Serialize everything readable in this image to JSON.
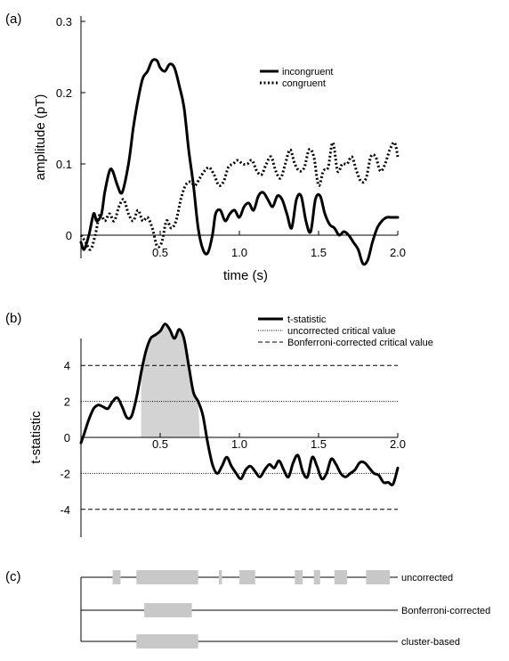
{
  "panels": {
    "a_label": "(a)",
    "b_label": "(b)",
    "c_label": "(c)"
  },
  "chart_data": [
    {
      "type": "line",
      "panel": "(a)",
      "xlabel": "time (s)",
      "ylabel": "amplitude (pT)",
      "xlim": [
        0,
        2.0
      ],
      "ylim": [
        -0.04,
        0.3
      ],
      "x_ticks": [
        "0.5",
        "1.0",
        "1.5",
        "2.0"
      ],
      "x_tick_values": [
        0.5,
        1.0,
        1.5,
        2.0
      ],
      "y_ticks": [
        "0",
        "0.1",
        "0.2",
        "0.3"
      ],
      "y_tick_values": [
        0,
        0.1,
        0.2,
        0.3
      ],
      "grid": false,
      "legend_position": "top-right",
      "series": [
        {
          "name": "incongruent",
          "style": "solid",
          "x": [
            0.0,
            0.02,
            0.05,
            0.08,
            0.1,
            0.13,
            0.15,
            0.18,
            0.2,
            0.23,
            0.26,
            0.3,
            0.33,
            0.36,
            0.39,
            0.42,
            0.45,
            0.48,
            0.5,
            0.53,
            0.56,
            0.59,
            0.62,
            0.65,
            0.68,
            0.71,
            0.74,
            0.77,
            0.8,
            0.83,
            0.85,
            0.88,
            0.91,
            0.94,
            0.97,
            1.0,
            1.03,
            1.06,
            1.09,
            1.12,
            1.15,
            1.18,
            1.21,
            1.24,
            1.27,
            1.3,
            1.33,
            1.36,
            1.39,
            1.42,
            1.45,
            1.48,
            1.51,
            1.54,
            1.57,
            1.6,
            1.63,
            1.66,
            1.69,
            1.72,
            1.75,
            1.78,
            1.81,
            1.84,
            1.87,
            1.9,
            1.93,
            1.96,
            2.0
          ],
          "y": [
            -0.01,
            -0.02,
            0.0,
            0.03,
            0.02,
            0.03,
            0.06,
            0.09,
            0.09,
            0.07,
            0.06,
            0.1,
            0.15,
            0.19,
            0.22,
            0.23,
            0.245,
            0.245,
            0.235,
            0.23,
            0.24,
            0.235,
            0.21,
            0.18,
            0.12,
            0.07,
            0.01,
            -0.02,
            -0.025,
            0.0,
            0.03,
            0.035,
            0.02,
            0.03,
            0.035,
            0.025,
            0.04,
            0.045,
            0.035,
            0.055,
            0.06,
            0.05,
            0.04,
            0.055,
            0.05,
            0.03,
            0.01,
            0.05,
            0.055,
            0.02,
            0.005,
            0.05,
            0.055,
            0.03,
            0.015,
            0.01,
            0.0,
            0.005,
            0.0,
            -0.01,
            -0.02,
            -0.04,
            -0.035,
            -0.01,
            0.01,
            0.02,
            0.025,
            0.025,
            0.025
          ]
        },
        {
          "name": "congruent",
          "style": "dotted",
          "x": [
            0.0,
            0.03,
            0.06,
            0.09,
            0.12,
            0.15,
            0.18,
            0.21,
            0.24,
            0.27,
            0.3,
            0.33,
            0.36,
            0.39,
            0.42,
            0.45,
            0.48,
            0.51,
            0.54,
            0.57,
            0.6,
            0.63,
            0.66,
            0.69,
            0.72,
            0.75,
            0.78,
            0.81,
            0.84,
            0.87,
            0.9,
            0.93,
            0.96,
            0.99,
            1.02,
            1.05,
            1.08,
            1.11,
            1.14,
            1.17,
            1.2,
            1.23,
            1.26,
            1.29,
            1.32,
            1.35,
            1.38,
            1.41,
            1.44,
            1.47,
            1.5,
            1.53,
            1.56,
            1.59,
            1.62,
            1.65,
            1.68,
            1.71,
            1.74,
            1.77,
            1.8,
            1.83,
            1.86,
            1.89,
            1.92,
            1.95,
            1.98,
            2.0
          ],
          "y": [
            0.0,
            -0.01,
            -0.02,
            0.0,
            0.03,
            0.02,
            0.03,
            0.02,
            0.04,
            0.05,
            0.03,
            0.02,
            0.035,
            0.02,
            0.025,
            0.01,
            -0.015,
            -0.01,
            0.02,
            0.01,
            0.02,
            0.05,
            0.07,
            0.075,
            0.07,
            0.08,
            0.09,
            0.095,
            0.085,
            0.07,
            0.075,
            0.095,
            0.1,
            0.105,
            0.1,
            0.1,
            0.105,
            0.09,
            0.085,
            0.1,
            0.11,
            0.09,
            0.08,
            0.1,
            0.12,
            0.1,
            0.09,
            0.095,
            0.12,
            0.11,
            0.07,
            0.09,
            0.095,
            0.13,
            0.09,
            0.1,
            0.1,
            0.11,
            0.09,
            0.075,
            0.08,
            0.11,
            0.11,
            0.09,
            0.1,
            0.12,
            0.13,
            0.11
          ]
        }
      ]
    },
    {
      "type": "line",
      "panel": "(b)",
      "xlabel": "",
      "ylabel": "t-statistic",
      "xlim": [
        0,
        2.0
      ],
      "ylim": [
        -5.6,
        5.6
      ],
      "x_ticks": [
        "0.5",
        "1.0",
        "1.5",
        "2.0"
      ],
      "x_tick_values": [
        0.5,
        1.0,
        1.5,
        2.0
      ],
      "y_ticks": [
        "-4",
        "-2",
        "0",
        "2",
        "4"
      ],
      "y_tick_values": [
        -4,
        -2,
        0,
        2,
        4
      ],
      "grid": false,
      "legend_position": "top-right",
      "shaded_region": {
        "x_start": 0.38,
        "x_end": 0.75,
        "color": "#d3d3d3"
      },
      "reference_lines": [
        {
          "name": "uncorrected critical value",
          "style": "dotted",
          "values": [
            2,
            -2
          ]
        },
        {
          "name": "Bonferroni-corrected critical value",
          "style": "dashed",
          "values": [
            4,
            -4
          ]
        }
      ],
      "series": [
        {
          "name": "t-statistic",
          "style": "solid",
          "x": [
            0.0,
            0.02,
            0.05,
            0.08,
            0.11,
            0.14,
            0.17,
            0.2,
            0.23,
            0.26,
            0.29,
            0.32,
            0.35,
            0.38,
            0.41,
            0.44,
            0.47,
            0.5,
            0.53,
            0.56,
            0.59,
            0.62,
            0.65,
            0.68,
            0.71,
            0.74,
            0.77,
            0.8,
            0.83,
            0.86,
            0.89,
            0.92,
            0.95,
            0.98,
            1.01,
            1.04,
            1.07,
            1.1,
            1.13,
            1.16,
            1.19,
            1.22,
            1.25,
            1.28,
            1.31,
            1.34,
            1.37,
            1.4,
            1.43,
            1.46,
            1.49,
            1.52,
            1.55,
            1.58,
            1.61,
            1.64,
            1.67,
            1.7,
            1.73,
            1.76,
            1.79,
            1.82,
            1.85,
            1.88,
            1.91,
            1.94,
            1.97,
            2.0
          ],
          "y": [
            -0.3,
            0.2,
            1.0,
            1.6,
            1.8,
            1.7,
            1.6,
            2.0,
            2.2,
            1.7,
            1.1,
            1.2,
            2.2,
            3.6,
            4.8,
            5.5,
            5.7,
            5.9,
            6.3,
            6.0,
            5.5,
            6.0,
            5.5,
            4.0,
            2.5,
            2.0,
            1.2,
            -0.3,
            -1.5,
            -2.0,
            -1.6,
            -1.1,
            -1.6,
            -2.0,
            -2.3,
            -1.8,
            -1.6,
            -1.9,
            -2.2,
            -1.8,
            -1.5,
            -1.7,
            -1.3,
            -1.8,
            -2.2,
            -1.4,
            -1.0,
            -1.9,
            -2.2,
            -1.1,
            -1.6,
            -2.3,
            -2.0,
            -1.2,
            -1.5,
            -2.0,
            -2.2,
            -2.0,
            -1.8,
            -1.4,
            -1.4,
            -1.7,
            -2.0,
            -2.1,
            -2.5,
            -2.5,
            -2.6,
            -1.7
          ]
        }
      ]
    },
    {
      "type": "interval",
      "panel": "(c)",
      "xlim": [
        0,
        2.0
      ],
      "rows": [
        {
          "name": "uncorrected",
          "intervals": [
            [
              0.2,
              0.25
            ],
            [
              0.35,
              0.74
            ],
            [
              0.87,
              0.89
            ],
            [
              1.0,
              1.1
            ],
            [
              1.35,
              1.4
            ],
            [
              1.47,
              1.51
            ],
            [
              1.6,
              1.68
            ],
            [
              1.8,
              1.95
            ]
          ]
        },
        {
          "name": "Bonferroni-corrected",
          "intervals": [
            [
              0.4,
              0.7
            ]
          ]
        },
        {
          "name": "cluster-based",
          "intervals": [
            [
              0.35,
              0.74
            ]
          ]
        }
      ]
    }
  ]
}
